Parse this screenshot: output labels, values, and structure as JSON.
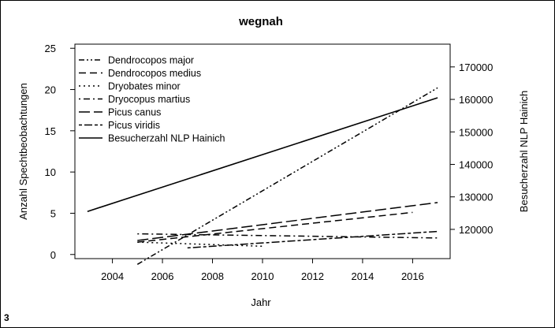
{
  "figure_label": "3",
  "chart_data": {
    "type": "line",
    "title": "wegnah",
    "xlabel": "Jahr",
    "ylabel": "Anzahl Spechtbeobachtungen",
    "ylabel_right": "Besucherzahl NLP Hainich",
    "xlim": [
      2002.5,
      2017.5
    ],
    "ylim": [
      -0.5,
      25.5
    ],
    "ylim_right": [
      111000,
      177000
    ],
    "x_ticks": [
      2004,
      2006,
      2008,
      2010,
      2012,
      2014,
      2016
    ],
    "y_ticks": [
      0,
      5,
      10,
      15,
      20,
      25
    ],
    "y_ticks_right": [
      120000,
      130000,
      140000,
      150000,
      160000,
      170000
    ],
    "grid": false,
    "legend_position": "top-left",
    "series": [
      {
        "name": "Dendrocopos major",
        "dash": "dash-dot-dot",
        "axis": "left",
        "x": [
          2005,
          2017
        ],
        "values": [
          -1.2,
          20.2
        ]
      },
      {
        "name": "Dendrocopos medius",
        "dash": "dashed",
        "axis": "left",
        "x": [
          2005,
          2016
        ],
        "values": [
          1.5,
          5.1
        ]
      },
      {
        "name": "Dryobates minor",
        "dash": "dotted",
        "axis": "left",
        "x": [
          2005,
          2010
        ],
        "values": [
          1.5,
          1.0
        ]
      },
      {
        "name": "Dryocopus martius",
        "dash": "dash-dot",
        "axis": "left",
        "x": [
          2005,
          2017
        ],
        "values": [
          2.5,
          2.0
        ]
      },
      {
        "name": "Picus canus",
        "dash": "long-dash",
        "axis": "left",
        "x": [
          2005,
          2017
        ],
        "values": [
          1.7,
          6.3
        ]
      },
      {
        "name": "Picus viridis",
        "dash": "two-dash",
        "axis": "left",
        "x": [
          2007,
          2017
        ],
        "values": [
          0.8,
          2.8
        ]
      },
      {
        "name": "Besucherzahl NLP Hainich",
        "dash": "solid",
        "axis": "right",
        "x": [
          2003,
          2017
        ],
        "values": [
          125500,
          160500
        ]
      }
    ]
  }
}
